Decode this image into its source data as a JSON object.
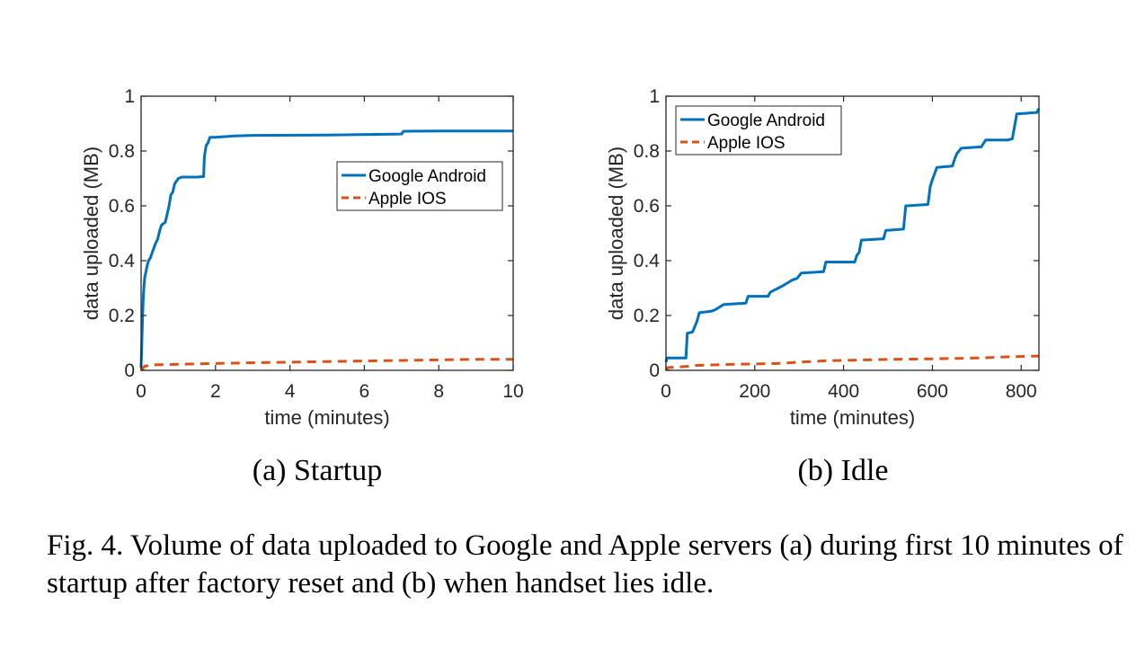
{
  "caption": "Fig. 4.  Volume of data uploaded to Google and Apple servers (a) during first 10 minutes of startup after factory reset and (b) when handset lies idle.",
  "colors": {
    "android": "#0072BD",
    "ios": "#D95319",
    "axes": "#262626"
  },
  "chart_data": [
    {
      "type": "line",
      "subcaption": "(a)  Startup",
      "xlabel": "time (minutes)",
      "ylabel": "data uploaded (MB)",
      "xlim": [
        0,
        10
      ],
      "ylim": [
        0,
        1
      ],
      "xticks": [
        0,
        2,
        4,
        6,
        8,
        10
      ],
      "xtick_labels": [
        "0",
        "2",
        "4",
        "6",
        "8",
        "10"
      ],
      "yticks": [
        0,
        0.2,
        0.4,
        0.6,
        0.8,
        1
      ],
      "ytick_labels": [
        "0",
        "0.2",
        "0.4",
        "0.6",
        "0.8",
        "1"
      ],
      "legend_position": "right",
      "grid": false,
      "series": [
        {
          "name": "Google Android",
          "style": "solid",
          "x": [
            0,
            0.02,
            0.04,
            0.06,
            0.08,
            0.1,
            0.13,
            0.16,
            0.2,
            0.25,
            0.3,
            0.38,
            0.45,
            0.5,
            0.55,
            0.6,
            0.65,
            0.75,
            0.8,
            0.85,
            0.9,
            0.95,
            1.0,
            1.1,
            1.3,
            1.5,
            1.68,
            1.7,
            1.75,
            1.8,
            1.85,
            2.0,
            2.5,
            3.0,
            5.0,
            7.0,
            7.05,
            8.0,
            10.0
          ],
          "y": [
            0.01,
            0.1,
            0.2,
            0.27,
            0.31,
            0.34,
            0.36,
            0.38,
            0.4,
            0.41,
            0.43,
            0.46,
            0.48,
            0.51,
            0.53,
            0.535,
            0.54,
            0.6,
            0.64,
            0.65,
            0.68,
            0.69,
            0.7,
            0.705,
            0.705,
            0.705,
            0.707,
            0.78,
            0.82,
            0.83,
            0.85,
            0.85,
            0.855,
            0.857,
            0.858,
            0.862,
            0.872,
            0.873,
            0.873
          ]
        },
        {
          "name": "Apple IOS",
          "style": "dashed",
          "x": [
            0,
            0.1,
            0.3,
            1,
            2,
            3,
            4,
            5,
            6,
            7,
            8,
            9,
            10
          ],
          "y": [
            0.0,
            0.015,
            0.02,
            0.022,
            0.025,
            0.028,
            0.03,
            0.032,
            0.034,
            0.036,
            0.038,
            0.04,
            0.04
          ]
        }
      ]
    },
    {
      "type": "line",
      "subcaption": "(b)  Idle",
      "xlabel": "time (minutes)",
      "ylabel": "data uploaded (MB)",
      "xlim": [
        0,
        840
      ],
      "ylim": [
        0,
        1
      ],
      "xticks": [
        0,
        200,
        400,
        600,
        800
      ],
      "xtick_labels": [
        "0",
        "200",
        "400",
        "600",
        "800"
      ],
      "yticks": [
        0,
        0.2,
        0.4,
        0.6,
        0.8,
        1
      ],
      "ytick_labels": [
        "0",
        "0.2",
        "0.4",
        "0.6",
        "0.8",
        "1"
      ],
      "legend_position": "top-left",
      "grid": false,
      "series": [
        {
          "name": "Google Android",
          "style": "solid",
          "x": [
            0,
            2,
            45,
            48,
            60,
            70,
            75,
            100,
            110,
            130,
            180,
            185,
            230,
            235,
            265,
            285,
            295,
            305,
            355,
            360,
            425,
            430,
            435,
            440,
            490,
            495,
            535,
            540,
            590,
            595,
            600,
            610,
            645,
            650,
            655,
            665,
            710,
            720,
            770,
            780,
            790,
            830,
            835,
            840
          ],
          "y": [
            0.03,
            0.045,
            0.045,
            0.135,
            0.14,
            0.18,
            0.21,
            0.215,
            0.22,
            0.24,
            0.245,
            0.27,
            0.27,
            0.285,
            0.31,
            0.33,
            0.335,
            0.355,
            0.36,
            0.395,
            0.395,
            0.42,
            0.43,
            0.475,
            0.48,
            0.51,
            0.515,
            0.6,
            0.605,
            0.67,
            0.695,
            0.74,
            0.745,
            0.77,
            0.79,
            0.81,
            0.815,
            0.84,
            0.84,
            0.845,
            0.935,
            0.94,
            0.94,
            0.955
          ]
        },
        {
          "name": "Apple IOS",
          "style": "dashed",
          "x": [
            0,
            5,
            30,
            70,
            150,
            250,
            300,
            360,
            420,
            500,
            600,
            700,
            780,
            840
          ],
          "y": [
            0.0,
            0.01,
            0.012,
            0.018,
            0.022,
            0.025,
            0.03,
            0.035,
            0.037,
            0.04,
            0.042,
            0.045,
            0.05,
            0.052
          ]
        }
      ]
    }
  ]
}
